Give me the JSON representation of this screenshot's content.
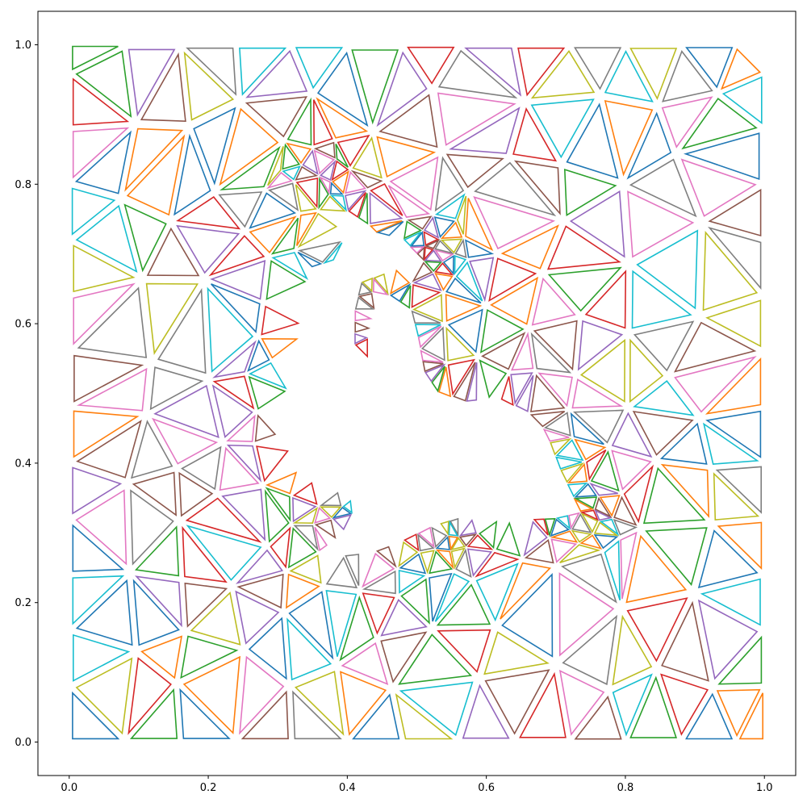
{
  "chart_data": {
    "type": "mesh",
    "title": "",
    "xlabel": "",
    "ylabel": "",
    "xlim": [
      -0.045,
      1.045
    ],
    "ylim": [
      -0.048,
      1.048
    ],
    "x_ticks": [
      "0.0",
      "0.2",
      "0.4",
      "0.6",
      "0.8",
      "1.0"
    ],
    "y_ticks": [
      "0.0",
      "0.2",
      "0.4",
      "0.6",
      "0.8",
      "1.0"
    ],
    "grid": false,
    "legend": "none",
    "triangle_shrink": 0.82,
    "domain_outer": [
      [
        0,
        0
      ],
      [
        1,
        0
      ],
      [
        1,
        1
      ],
      [
        0,
        1
      ]
    ],
    "hole_boundary": [
      [
        0.31,
        0.47
      ],
      [
        0.3,
        0.44
      ],
      [
        0.32,
        0.42
      ],
      [
        0.33,
        0.39
      ],
      [
        0.35,
        0.375
      ],
      [
        0.375,
        0.365
      ],
      [
        0.4,
        0.355
      ],
      [
        0.41,
        0.34
      ],
      [
        0.405,
        0.315
      ],
      [
        0.385,
        0.29
      ],
      [
        0.36,
        0.272
      ],
      [
        0.395,
        0.27
      ],
      [
        0.44,
        0.275
      ],
      [
        0.48,
        0.29
      ],
      [
        0.52,
        0.31
      ],
      [
        0.56,
        0.322
      ],
      [
        0.6,
        0.32
      ],
      [
        0.65,
        0.32
      ],
      [
        0.7,
        0.322
      ],
      [
        0.735,
        0.33
      ],
      [
        0.725,
        0.35
      ],
      [
        0.705,
        0.39
      ],
      [
        0.69,
        0.43
      ],
      [
        0.68,
        0.45
      ],
      [
        0.66,
        0.47
      ],
      [
        0.62,
        0.49
      ],
      [
        0.57,
        0.485
      ],
      [
        0.53,
        0.5
      ],
      [
        0.51,
        0.53
      ],
      [
        0.5,
        0.58
      ],
      [
        0.49,
        0.62
      ],
      [
        0.46,
        0.64
      ],
      [
        0.44,
        0.62
      ],
      [
        0.43,
        0.58
      ],
      [
        0.45,
        0.56
      ],
      [
        0.43,
        0.55
      ],
      [
        0.41,
        0.57
      ],
      [
        0.41,
        0.62
      ],
      [
        0.42,
        0.66
      ],
      [
        0.47,
        0.68
      ],
      [
        0.51,
        0.69
      ],
      [
        0.48,
        0.72
      ],
      [
        0.44,
        0.73
      ],
      [
        0.43,
        0.74
      ],
      [
        0.4,
        0.76
      ],
      [
        0.39,
        0.74
      ],
      [
        0.4,
        0.7
      ],
      [
        0.38,
        0.69
      ],
      [
        0.35,
        0.68
      ],
      [
        0.34,
        0.62
      ],
      [
        0.33,
        0.56
      ],
      [
        0.32,
        0.52
      ]
    ],
    "refinement_centers": [
      [
        0.4,
        0.34
      ],
      [
        0.54,
        0.3
      ],
      [
        0.75,
        0.33
      ],
      [
        0.44,
        0.61
      ],
      [
        0.37,
        0.8
      ],
      [
        0.52,
        0.7
      ]
    ],
    "series_colors": [
      "#1f77b4",
      "#ff7f0e",
      "#2ca02c",
      "#d62728",
      "#9467bd",
      "#8c564b",
      "#e377c2",
      "#7f7f7f",
      "#bcbd22",
      "#17becf"
    ]
  }
}
